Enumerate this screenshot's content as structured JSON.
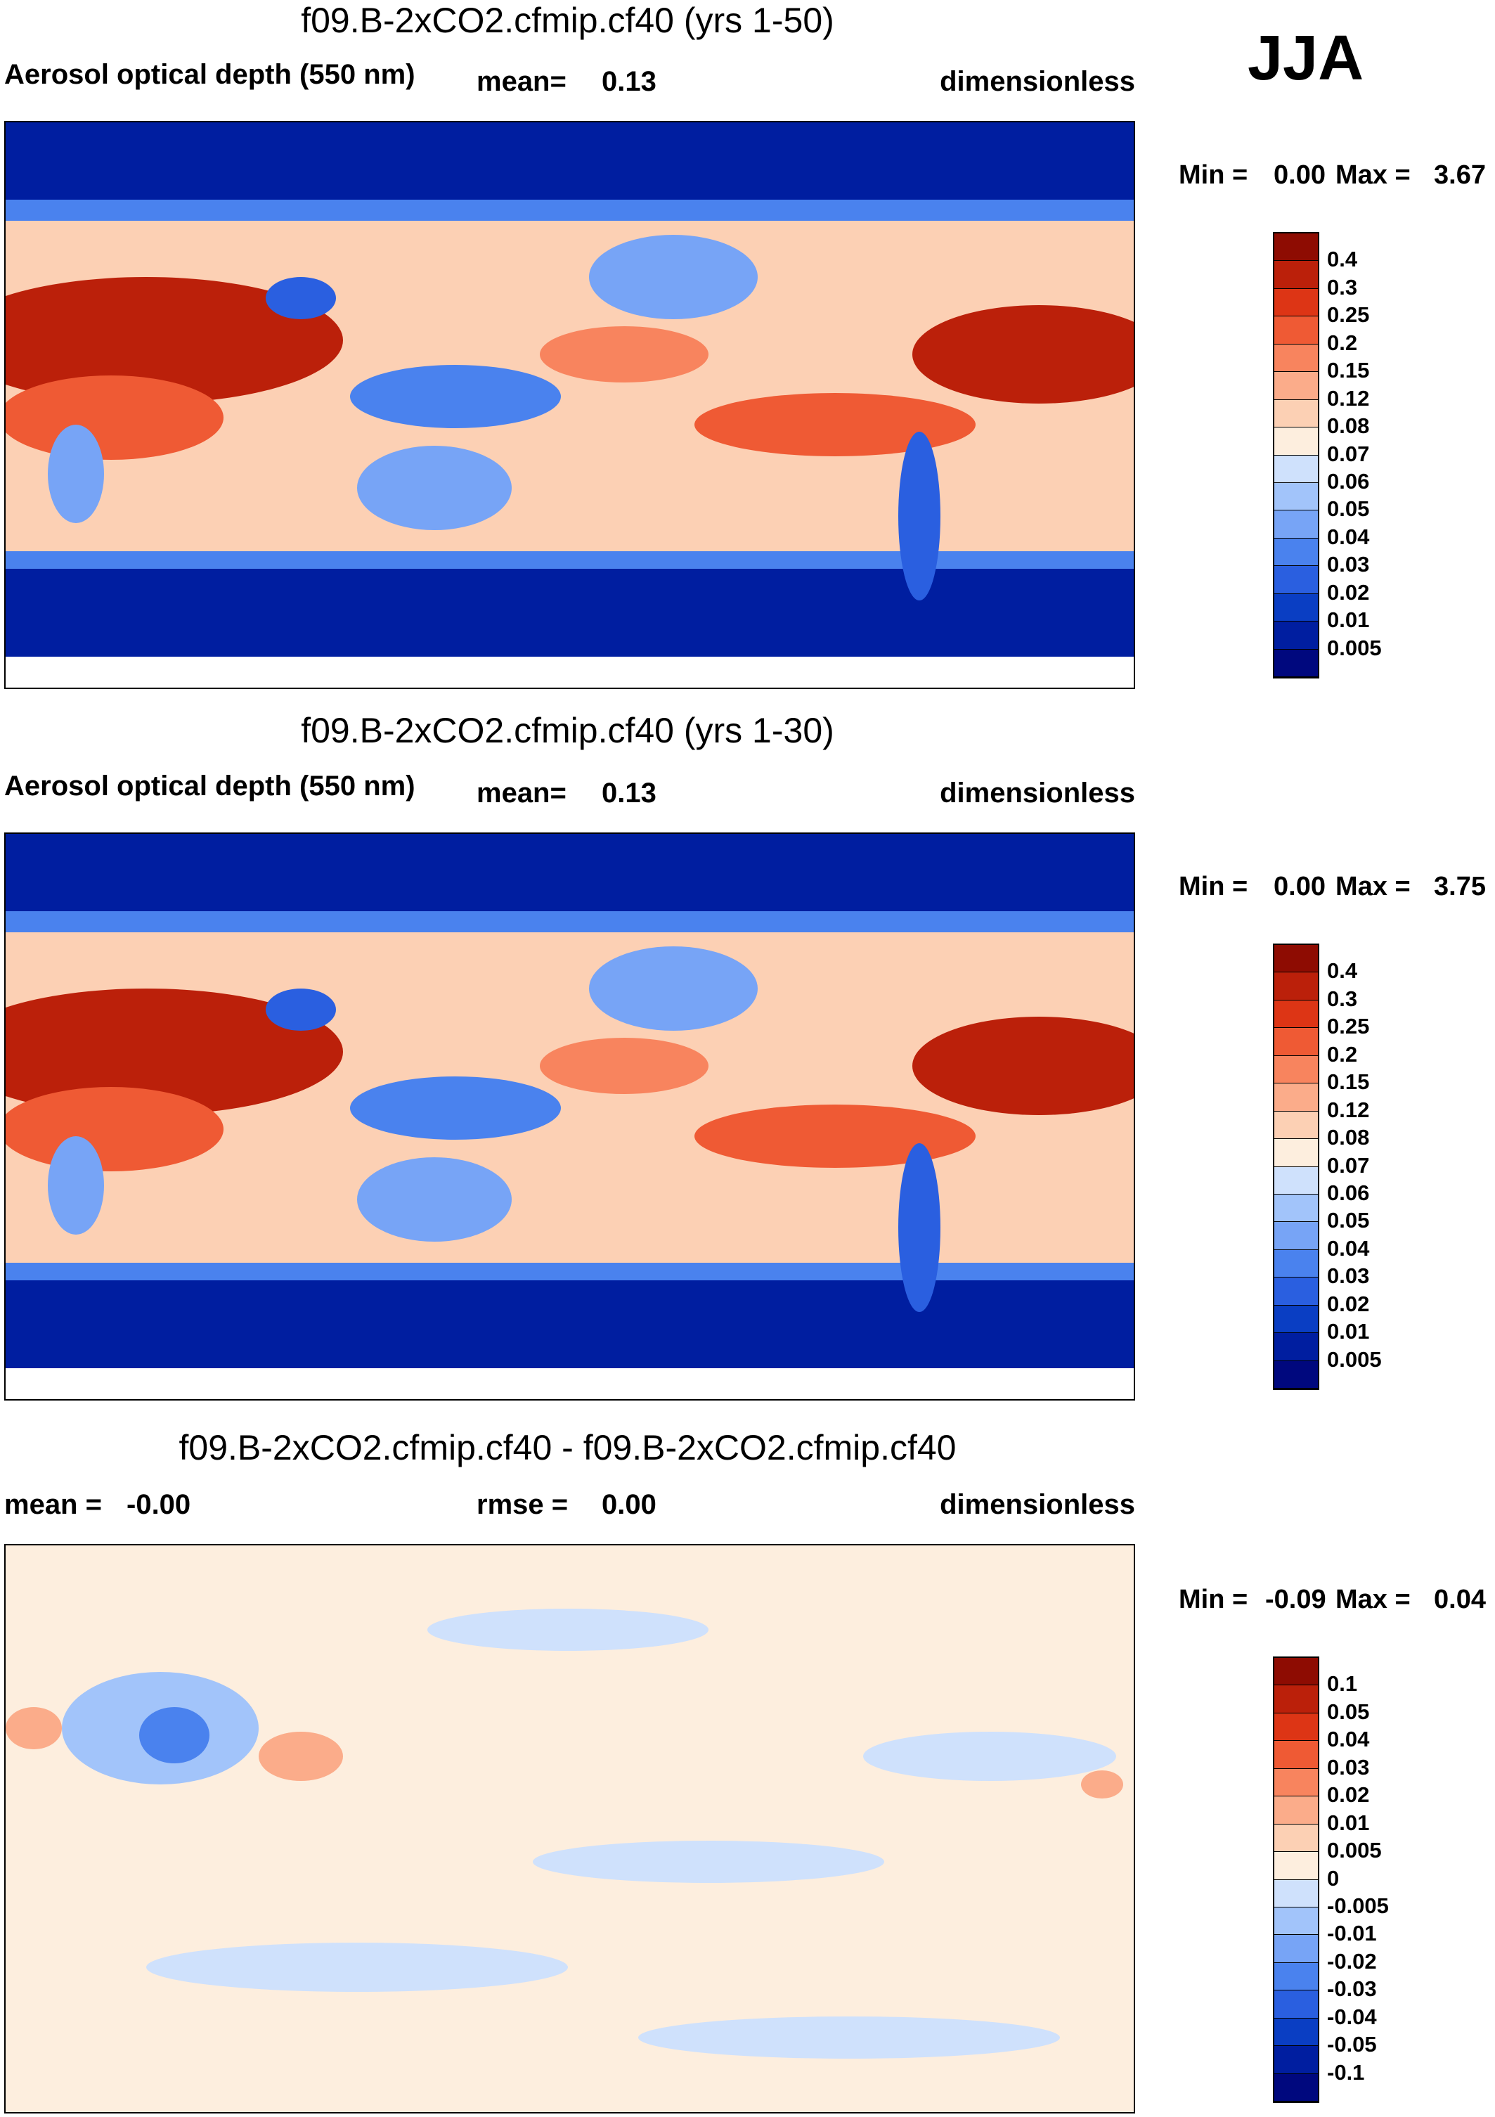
{
  "season": "JJA",
  "units": "dimensionless",
  "colors": {
    "abs_scale": [
      "#00087e",
      "#001ea0",
      "#0a3ec3",
      "#2a5fe0",
      "#4a82ee",
      "#77a4f6",
      "#a2c4fa",
      "#cfe1fc",
      "#fdeede",
      "#fcd0b4",
      "#fbac8a",
      "#f8845e",
      "#ef5a34",
      "#dd3515",
      "#bb200a",
      "#8e0c02"
    ],
    "diff_scale": [
      "#00087e",
      "#001ea0",
      "#0a3ec3",
      "#2a5fe0",
      "#4a82ee",
      "#77a4f6",
      "#a2c4fa",
      "#cfe1fc",
      "#fdeede",
      "#fcd0b4",
      "#fbac8a",
      "#f8845e",
      "#ef5a34",
      "#dd3515",
      "#bb200a",
      "#8e0c02"
    ],
    "land": "#111111"
  },
  "panels": [
    {
      "title": "f09.B-2xCO2.cfmip.cf40 (yrs 1-50)",
      "variable": "Aerosol optical depth (550 nm)",
      "stat1_label": "mean=",
      "stat1_value": "0.13",
      "stat2_label": "",
      "stat2_value": "",
      "units": "dimensionless",
      "min_label": "Min =",
      "min_value": "0.00",
      "max_label": "Max =",
      "max_value": "3.67",
      "colorbar_ticks": [
        "0.4",
        "0.3",
        "0.25",
        "0.2",
        "0.15",
        "0.12",
        "0.08",
        "0.07",
        "0.06",
        "0.05",
        "0.04",
        "0.03",
        "0.02",
        "0.01",
        "0.005"
      ]
    },
    {
      "title": "f09.B-2xCO2.cfmip.cf40 (yrs 1-30)",
      "variable": "Aerosol optical depth (550 nm)",
      "stat1_label": "mean=",
      "stat1_value": "0.13",
      "stat2_label": "",
      "stat2_value": "",
      "units": "dimensionless",
      "min_label": "Min =",
      "min_value": "0.00",
      "max_label": "Max =",
      "max_value": "3.75",
      "colorbar_ticks": [
        "0.4",
        "0.3",
        "0.25",
        "0.2",
        "0.15",
        "0.12",
        "0.08",
        "0.07",
        "0.06",
        "0.05",
        "0.04",
        "0.03",
        "0.02",
        "0.01",
        "0.005"
      ]
    },
    {
      "title": "f09.B-2xCO2.cfmip.cf40 - f09.B-2xCO2.cfmip.cf40",
      "variable": "",
      "stat1_label": "mean =",
      "stat1_value": "-0.00",
      "stat2_label": "rmse =",
      "stat2_value": "0.00",
      "units": "dimensionless",
      "min_label": "Min =",
      "min_value": "-0.09",
      "max_label": "Max =",
      "max_value": "0.04",
      "colorbar_ticks": [
        "0.1",
        "0.05",
        "0.04",
        "0.03",
        "0.02",
        "0.01",
        "0.005",
        "0",
        "-0.005",
        "-0.01",
        "-0.02",
        "-0.03",
        "-0.04",
        "-0.05",
        "-0.1"
      ]
    }
  ]
}
